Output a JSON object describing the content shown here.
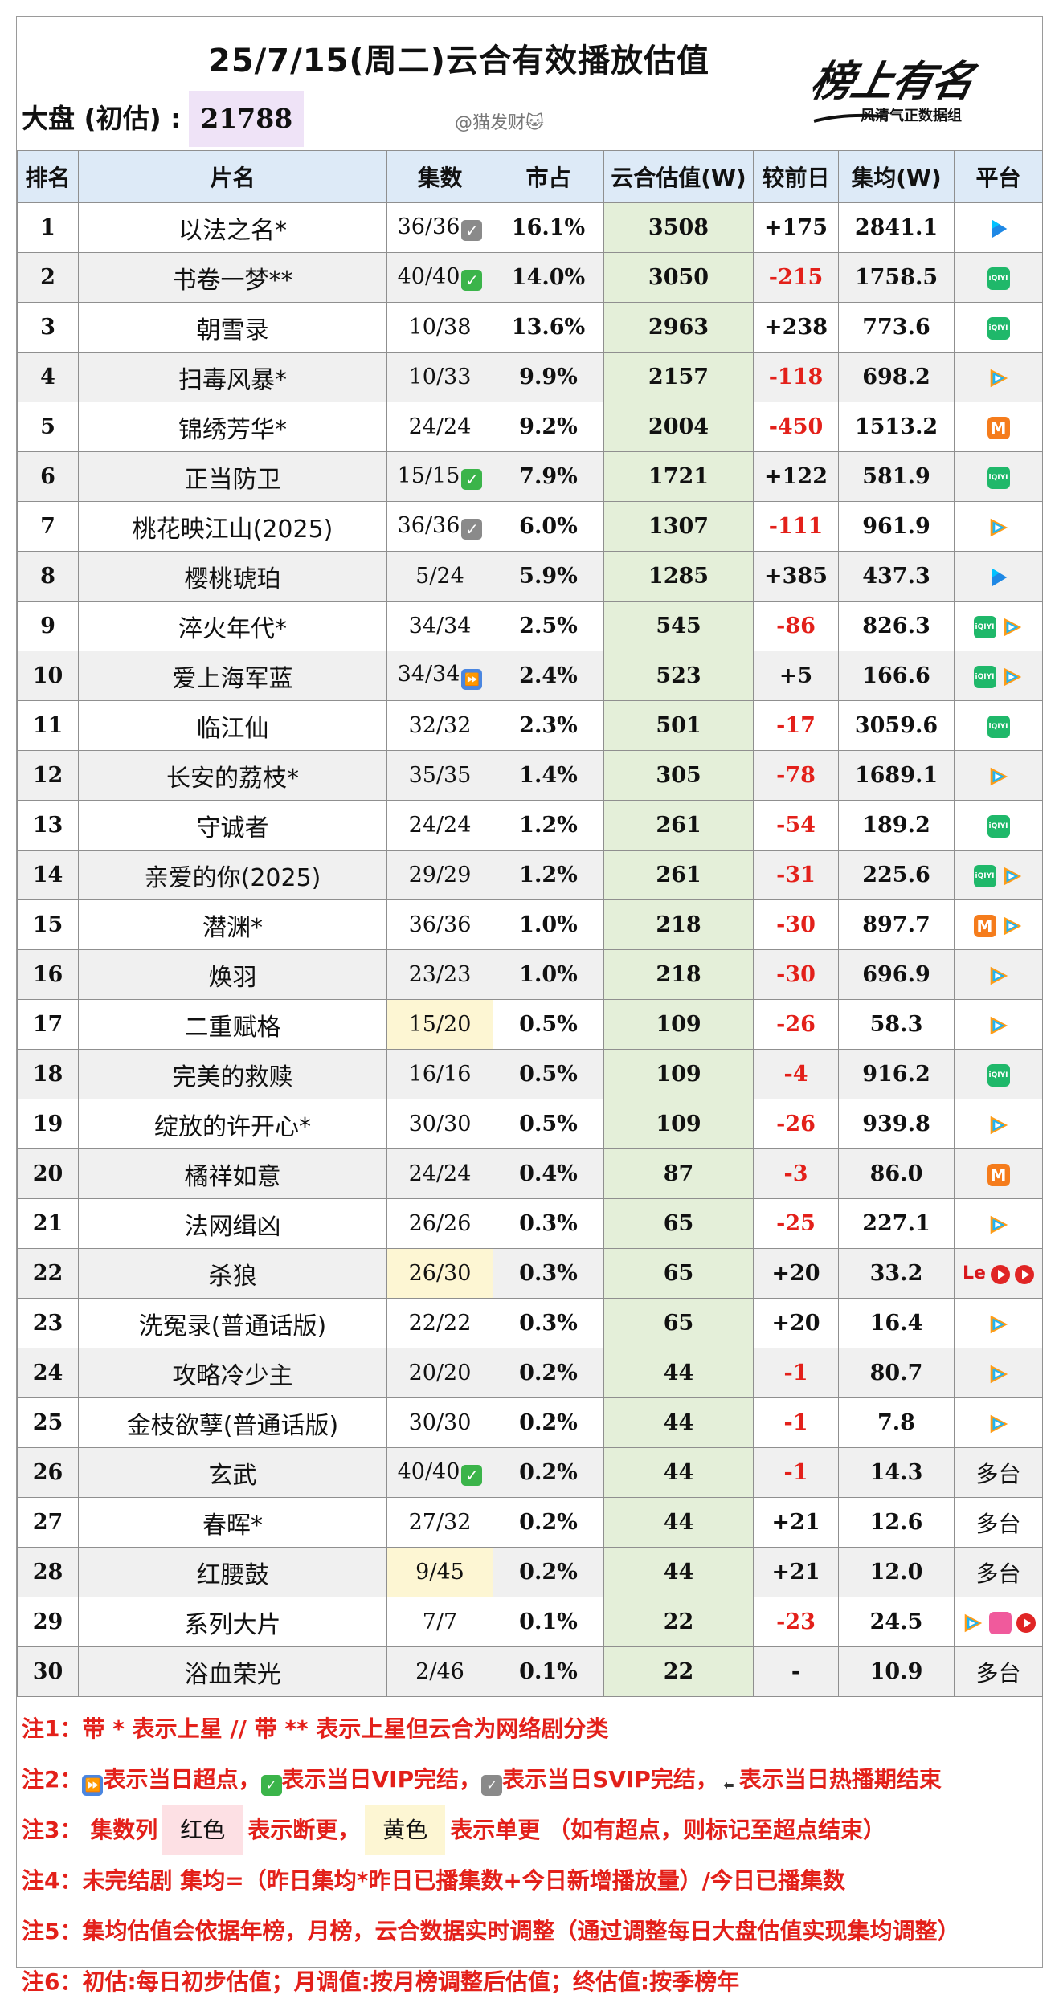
{
  "title": "25/7/15(周二)云合有效播放估值",
  "market": {
    "label": "大盘 (初估) :",
    "value": "21788"
  },
  "watermark": "@猫发财🐱",
  "logo": {
    "brand": "榜上有名",
    "subtitle": "风清气正数据组"
  },
  "columns": [
    "排名",
    "片名",
    "集数",
    "市占",
    "云合估值(W)",
    "较前日",
    "集均(W)",
    "平台"
  ],
  "rows": [
    {
      "rank": "1",
      "name": "以法之名*",
      "episodes": "36/36",
      "mark": "svip",
      "share": "16.1%",
      "estimate": "3508",
      "change": "+175",
      "avg": "2841.1",
      "platforms": [
        "youku"
      ]
    },
    {
      "rank": "2",
      "name": "书卷一梦**",
      "episodes": "40/40",
      "mark": "vip",
      "share": "14.0%",
      "estimate": "3050",
      "change": "-215",
      "avg": "1758.5",
      "platforms": [
        "iqiyi"
      ]
    },
    {
      "rank": "3",
      "name": "朝雪录",
      "episodes": "10/38",
      "mark": "",
      "share": "13.6%",
      "estimate": "2963",
      "change": "+238",
      "avg": "773.6",
      "platforms": [
        "iqiyi"
      ]
    },
    {
      "rank": "4",
      "name": "扫毒风暴*",
      "episodes": "10/33",
      "mark": "",
      "share": "9.9%",
      "estimate": "2157",
      "change": "-118",
      "avg": "698.2",
      "platforms": [
        "tencent"
      ]
    },
    {
      "rank": "5",
      "name": "锦绣芳华*",
      "episodes": "24/24",
      "mark": "",
      "share": "9.2%",
      "estimate": "2004",
      "change": "-450",
      "avg": "1513.2",
      "platforms": [
        "mgtv"
      ]
    },
    {
      "rank": "6",
      "name": "正当防卫",
      "episodes": "15/15",
      "mark": "vip",
      "share": "7.9%",
      "estimate": "1721",
      "change": "+122",
      "avg": "581.9",
      "platforms": [
        "iqiyi"
      ]
    },
    {
      "rank": "7",
      "name": "桃花映江山(2025)",
      "episodes": "36/36",
      "mark": "svip",
      "share": "6.0%",
      "estimate": "1307",
      "change": "-111",
      "avg": "961.9",
      "platforms": [
        "tencent"
      ]
    },
    {
      "rank": "8",
      "name": "樱桃琥珀",
      "episodes": "5/24",
      "mark": "",
      "share": "5.9%",
      "estimate": "1285",
      "change": "+385",
      "avg": "437.3",
      "platforms": [
        "youku"
      ]
    },
    {
      "rank": "9",
      "name": "淬火年代*",
      "episodes": "34/34",
      "mark": "",
      "share": "2.5%",
      "estimate": "545",
      "change": "-86",
      "avg": "826.3",
      "platforms": [
        "iqiyi",
        "tencent"
      ]
    },
    {
      "rank": "10",
      "name": "爱上海军蓝",
      "episodes": "34/34",
      "mark": "ff",
      "share": "2.4%",
      "estimate": "523",
      "change": "+5",
      "avg": "166.6",
      "platforms": [
        "iqiyi",
        "tencent"
      ]
    },
    {
      "rank": "11",
      "name": "临江仙",
      "episodes": "32/32",
      "mark": "",
      "share": "2.3%",
      "estimate": "501",
      "change": "-17",
      "avg": "3059.6",
      "platforms": [
        "iqiyi"
      ]
    },
    {
      "rank": "12",
      "name": "长安的荔枝*",
      "episodes": "35/35",
      "mark": "",
      "share": "1.4%",
      "estimate": "305",
      "change": "-78",
      "avg": "1689.1",
      "platforms": [
        "tencent"
      ]
    },
    {
      "rank": "13",
      "name": "守诚者",
      "episodes": "24/24",
      "mark": "",
      "share": "1.2%",
      "estimate": "261",
      "change": "-54",
      "avg": "189.2",
      "platforms": [
        "iqiyi"
      ]
    },
    {
      "rank": "14",
      "name": "亲爱的你(2025)",
      "episodes": "29/29",
      "mark": "",
      "share": "1.2%",
      "estimate": "261",
      "change": "-31",
      "avg": "225.6",
      "platforms": [
        "iqiyi",
        "tencent"
      ]
    },
    {
      "rank": "15",
      "name": "潜渊*",
      "episodes": "36/36",
      "mark": "",
      "share": "1.0%",
      "estimate": "218",
      "change": "-30",
      "avg": "897.7",
      "platforms": [
        "mgtv",
        "tencent"
      ]
    },
    {
      "rank": "16",
      "name": "焕羽",
      "episodes": "23/23",
      "mark": "",
      "share": "1.0%",
      "estimate": "218",
      "change": "-30",
      "avg": "696.9",
      "platforms": [
        "tencent"
      ]
    },
    {
      "rank": "17",
      "name": "二重赋格",
      "episodes": "15/20",
      "mark": "",
      "ep_state": "update",
      "share": "0.5%",
      "estimate": "109",
      "change": "-26",
      "avg": "58.3",
      "platforms": [
        "tencent"
      ]
    },
    {
      "rank": "18",
      "name": "完美的救赎",
      "episodes": "16/16",
      "mark": "",
      "share": "0.5%",
      "estimate": "109",
      "change": "-4",
      "avg": "916.2",
      "platforms": [
        "iqiyi"
      ]
    },
    {
      "rank": "19",
      "name": "绽放的许开心*",
      "episodes": "30/30",
      "mark": "",
      "share": "0.5%",
      "estimate": "109",
      "change": "-26",
      "avg": "939.8",
      "platforms": [
        "tencent"
      ]
    },
    {
      "rank": "20",
      "name": "橘祥如意",
      "episodes": "24/24",
      "mark": "",
      "share": "0.4%",
      "estimate": "87",
      "change": "-3",
      "avg": "86.0",
      "platforms": [
        "mgtv"
      ]
    },
    {
      "rank": "21",
      "name": "法网缉凶",
      "episodes": "26/26",
      "mark": "",
      "share": "0.3%",
      "estimate": "65",
      "change": "-25",
      "avg": "227.1",
      "platforms": [
        "tencent"
      ]
    },
    {
      "rank": "22",
      "name": "杀狼",
      "episodes": "26/30",
      "mark": "",
      "ep_state": "update",
      "share": "0.3%",
      "estimate": "65",
      "change": "+20",
      "avg": "33.2",
      "platforms": [
        "le",
        "red",
        "red"
      ]
    },
    {
      "rank": "23",
      "name": "洗冤录(普通话版)",
      "episodes": "22/22",
      "mark": "",
      "share": "0.3%",
      "estimate": "65",
      "change": "+20",
      "avg": "16.4",
      "platforms": [
        "tencent"
      ]
    },
    {
      "rank": "24",
      "name": "攻略冷少主",
      "episodes": "20/20",
      "mark": "",
      "share": "0.2%",
      "estimate": "44",
      "change": "-1",
      "avg": "80.7",
      "platforms": [
        "tencent"
      ]
    },
    {
      "rank": "25",
      "name": "金枝欲孽(普通话版)",
      "episodes": "30/30",
      "mark": "",
      "share": "0.2%",
      "estimate": "44",
      "change": "-1",
      "avg": "7.8",
      "platforms": [
        "tencent"
      ]
    },
    {
      "rank": "26",
      "name": "玄武",
      "episodes": "40/40",
      "mark": "vip",
      "share": "0.2%",
      "estimate": "44",
      "change": "-1",
      "avg": "14.3",
      "platforms": [
        "多台"
      ]
    },
    {
      "rank": "27",
      "name": "春晖*",
      "episodes": "27/32",
      "mark": "",
      "share": "0.2%",
      "estimate": "44",
      "change": "+21",
      "avg": "12.6",
      "platforms": [
        "多台"
      ]
    },
    {
      "rank": "28",
      "name": "红腰鼓",
      "episodes": "9/45",
      "mark": "",
      "ep_state": "update",
      "share": "0.2%",
      "estimate": "44",
      "change": "+21",
      "avg": "12.0",
      "platforms": [
        "多台"
      ]
    },
    {
      "rank": "29",
      "name": "系列大片",
      "episodes": "7/7",
      "mark": "",
      "share": "0.1%",
      "estimate": "22",
      "change": "-23",
      "avg": "24.5",
      "platforms": [
        "tencent",
        "pink",
        "red"
      ]
    },
    {
      "rank": "30",
      "name": "浴血荣光",
      "episodes": "2/46",
      "mark": "",
      "share": "0.1%",
      "estimate": "22",
      "change": "-",
      "avg": "10.9",
      "platforms": [
        "多台"
      ]
    }
  ],
  "notes": {
    "n1": "注1：带 * 表示上星 // 带 ** 表示上星但云合为网络剧分类",
    "n2_a": "注2：",
    "n2_b": "表示当日超点，",
    "n2_c": "表示当日VIP完结，",
    "n2_d": "表示当日SVIP完结，",
    "n2_e": "表示当日热播期结束",
    "n3_a": "注3：  集数列",
    "n3_red": "红色",
    "n3_b": "表示断更，",
    "n3_yel": "黄色",
    "n3_c": "表示单更 （如有超点，则标记至超点结束）",
    "n4": "注4：未完结剧 集均=（昨日集均*昨日已播集数+今日新增播放量）/今日已播集数",
    "n5": "注5：集均估值会依据年榜，月榜，云合数据实时调整（通过调整每日大盘估值实现集均调整）",
    "n6": "注6：初估:每日初步估值；月调值:按月榜调整后估值；终估值:按季榜年"
  },
  "colors": {
    "estimate_bg": "#e4efd9",
    "header_bg": "#ddeaf7",
    "negative": "#e3201a",
    "update_bg": "#fdf6d3",
    "market_bg": "#efe3f7"
  }
}
